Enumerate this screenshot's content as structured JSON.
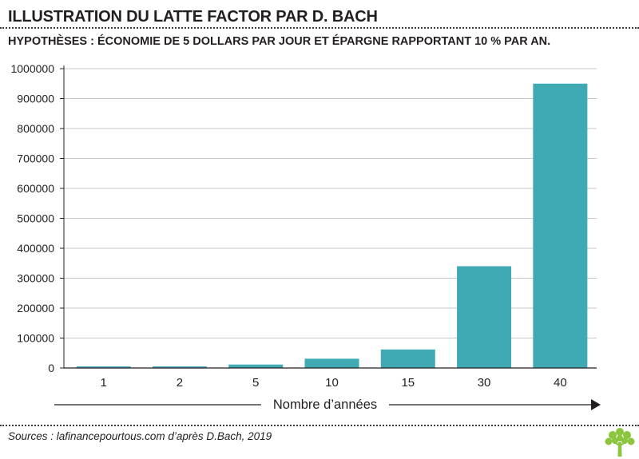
{
  "header": {
    "title": "ILLUSTRATION DU LATTE FACTOR PAR D. BACH",
    "subtitle": "HYPOTHÈSES : ÉCONOMIE DE 5 DOLLARS PAR JOUR ET ÉPARGNE RAPPORTANT 10 % PAR AN."
  },
  "footer": {
    "source": "Sources : lafinancepourtous.com d’après D.Bach, 2019",
    "logo_icon": "tree-logo-icon"
  },
  "colors": {
    "bar": "#3fa9b4",
    "logo": "#8cc63f",
    "axis": "#231f20",
    "grid": "#c9c9c9"
  },
  "chart_data": {
    "type": "bar",
    "categories": [
      "1",
      "2",
      "5",
      "10",
      "15",
      "30",
      "40"
    ],
    "values": [
      1900,
      4000,
      11500,
      31000,
      62000,
      340000,
      950000
    ],
    "xlabel": "Nombre d’années",
    "ylabel": "",
    "ylim": [
      0,
      1000000
    ],
    "yticks": [
      "0",
      "100000",
      "200000",
      "300000",
      "400000",
      "500000",
      "600000",
      "700000",
      "800000",
      "900000",
      "1000000"
    ],
    "grid": true,
    "legend": "none"
  }
}
